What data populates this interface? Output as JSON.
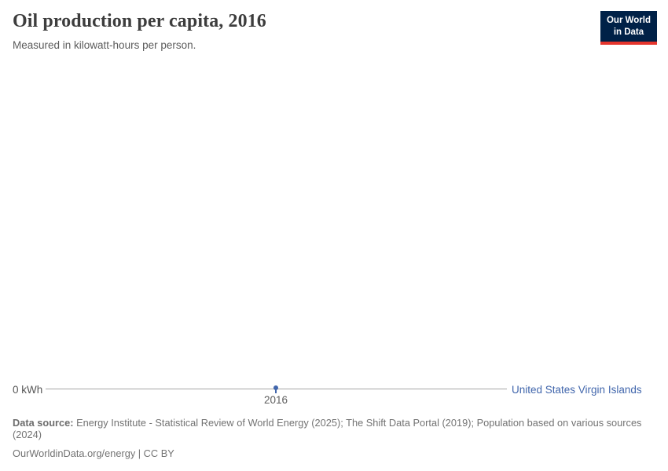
{
  "header": {
    "title": "Oil production per capita, 2016",
    "subtitle": "Measured in kilowatt-hours per person.",
    "logo": {
      "line1": "Our World",
      "line2": "in Data"
    }
  },
  "chart_data": {
    "type": "line",
    "title": "Oil production per capita, 2016",
    "subtitle": "Measured in kilowatt-hours per person.",
    "unit": "kWh",
    "x": [
      2016
    ],
    "x_tick_labels": [
      "2016"
    ],
    "series": [
      {
        "name": "United States Virgin Islands",
        "values": [
          0
        ],
        "color": "#4166ac"
      }
    ],
    "ylim": [
      0,
      0
    ],
    "y_axis_ticks": [
      "0 kWh"
    ],
    "grid": false,
    "legend_position": "right-of-line-end"
  },
  "axis": {
    "y_zero_label": "0 kWh",
    "x_tick": "2016",
    "entity_label": "United States Virgin Islands"
  },
  "footer": {
    "data_source_label": "Data source:",
    "data_source_text": "Energy Institute - Statistical Review of World Energy (2025); The Shift Data Portal (2019); Population based on various sources (2024)",
    "attribution": "OurWorldinData.org/energy | CC BY"
  },
  "colors": {
    "entity_blue": "#4166ac",
    "axis_line_gray": "#a6a6a6",
    "logo_background": "#002147",
    "logo_red": "#e5352d"
  }
}
